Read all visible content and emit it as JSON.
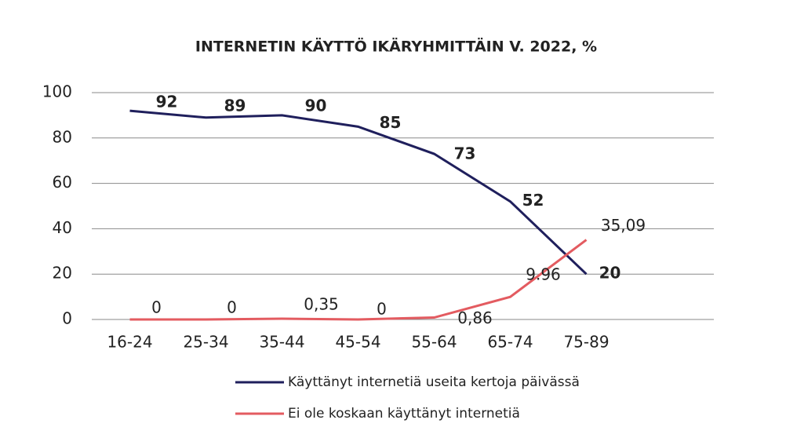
{
  "chart_data": {
    "type": "line",
    "title": "INTERNETIN KÄYTTÖ IKÄRYHMITTÄIN V. 2022, %",
    "categories": [
      "16-24",
      "25-34",
      "35-44",
      "45-54",
      "55-64",
      "65-74",
      "75-89"
    ],
    "series": [
      {
        "name": "Käyttänyt internetiä useita kertoja päivässä",
        "color": "#1f1f5c",
        "values": [
          92,
          89,
          90,
          85,
          73,
          52,
          20
        ]
      },
      {
        "name": "Ei ole koskaan käyttänyt internetiä",
        "color": "#e35b60",
        "values": [
          0,
          0,
          0.35,
          0,
          0.86,
          9.96,
          35.09
        ],
        "value_labels": [
          "0",
          "0",
          "0,35",
          "0",
          "0,86",
          "9.96",
          "35,09"
        ]
      }
    ],
    "ylim": [
      0,
      100
    ],
    "yticks": [
      0,
      20,
      40,
      60,
      80,
      100
    ],
    "grid": true
  }
}
